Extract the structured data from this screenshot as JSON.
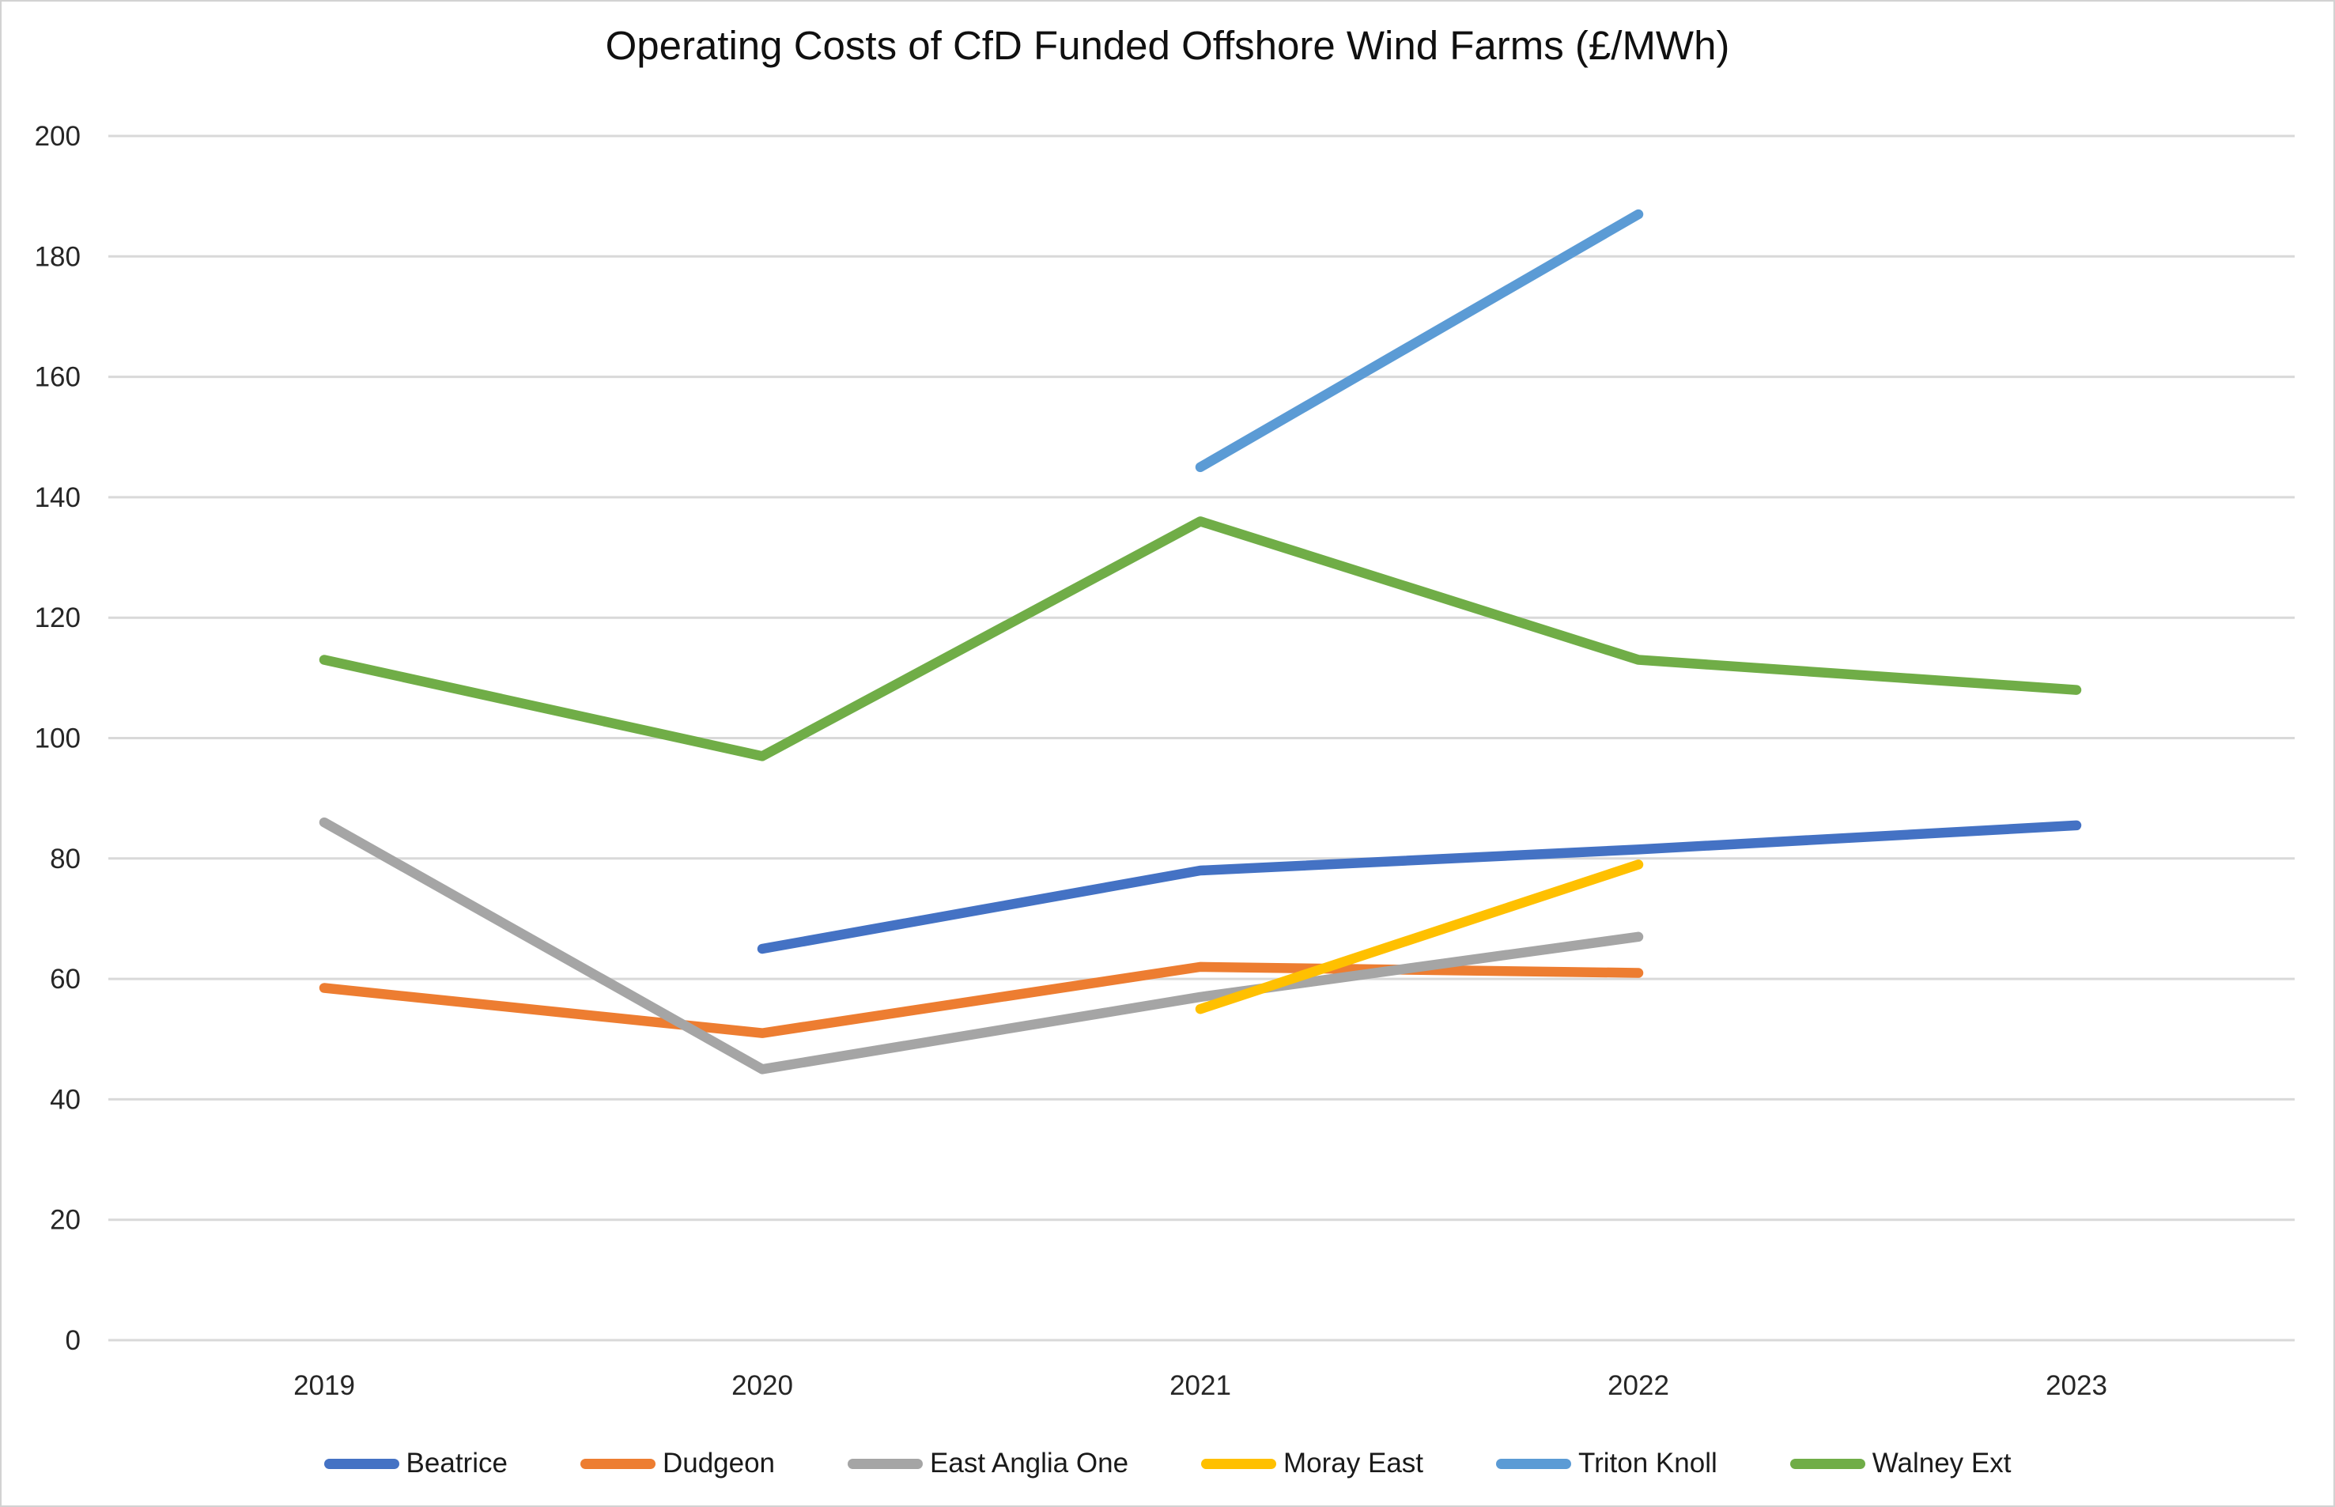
{
  "chart_data": {
    "type": "line",
    "title": "Operating Costs of CfD Funded Offshore Wind Farms (£/MWh)",
    "categories": [
      "2019",
      "2020",
      "2021",
      "2022",
      "2023"
    ],
    "series": [
      {
        "name": "Beatrice",
        "color": "#4472C4",
        "values": [
          null,
          65,
          78,
          81.5,
          85.5
        ]
      },
      {
        "name": "Dudgeon",
        "color": "#ED7D31",
        "values": [
          58.5,
          51,
          62,
          61,
          null
        ]
      },
      {
        "name": "East Anglia One",
        "color": "#A5A5A5",
        "values": [
          86,
          45,
          57,
          67,
          null
        ]
      },
      {
        "name": "Moray East",
        "color": "#FFC000",
        "values": [
          null,
          null,
          55,
          79,
          null
        ]
      },
      {
        "name": "Triton Knoll",
        "color": "#5B9BD5",
        "values": [
          null,
          null,
          145,
          187,
          null
        ]
      },
      {
        "name": "Walney Ext",
        "color": "#70AD47",
        "values": [
          113,
          97,
          136,
          113,
          108
        ]
      }
    ],
    "xlabel": "",
    "ylabel": "",
    "ylim": [
      0,
      200
    ],
    "ytick_step": 20,
    "yticks": [
      "0",
      "20",
      "40",
      "60",
      "80",
      "100",
      "120",
      "140",
      "160",
      "180",
      "200"
    ],
    "grid": "horizontal-only",
    "gridline_color": "#D9D9D9",
    "axis_text_color": "#262626",
    "legend_position": "bottom",
    "background": "#FFFFFF"
  }
}
